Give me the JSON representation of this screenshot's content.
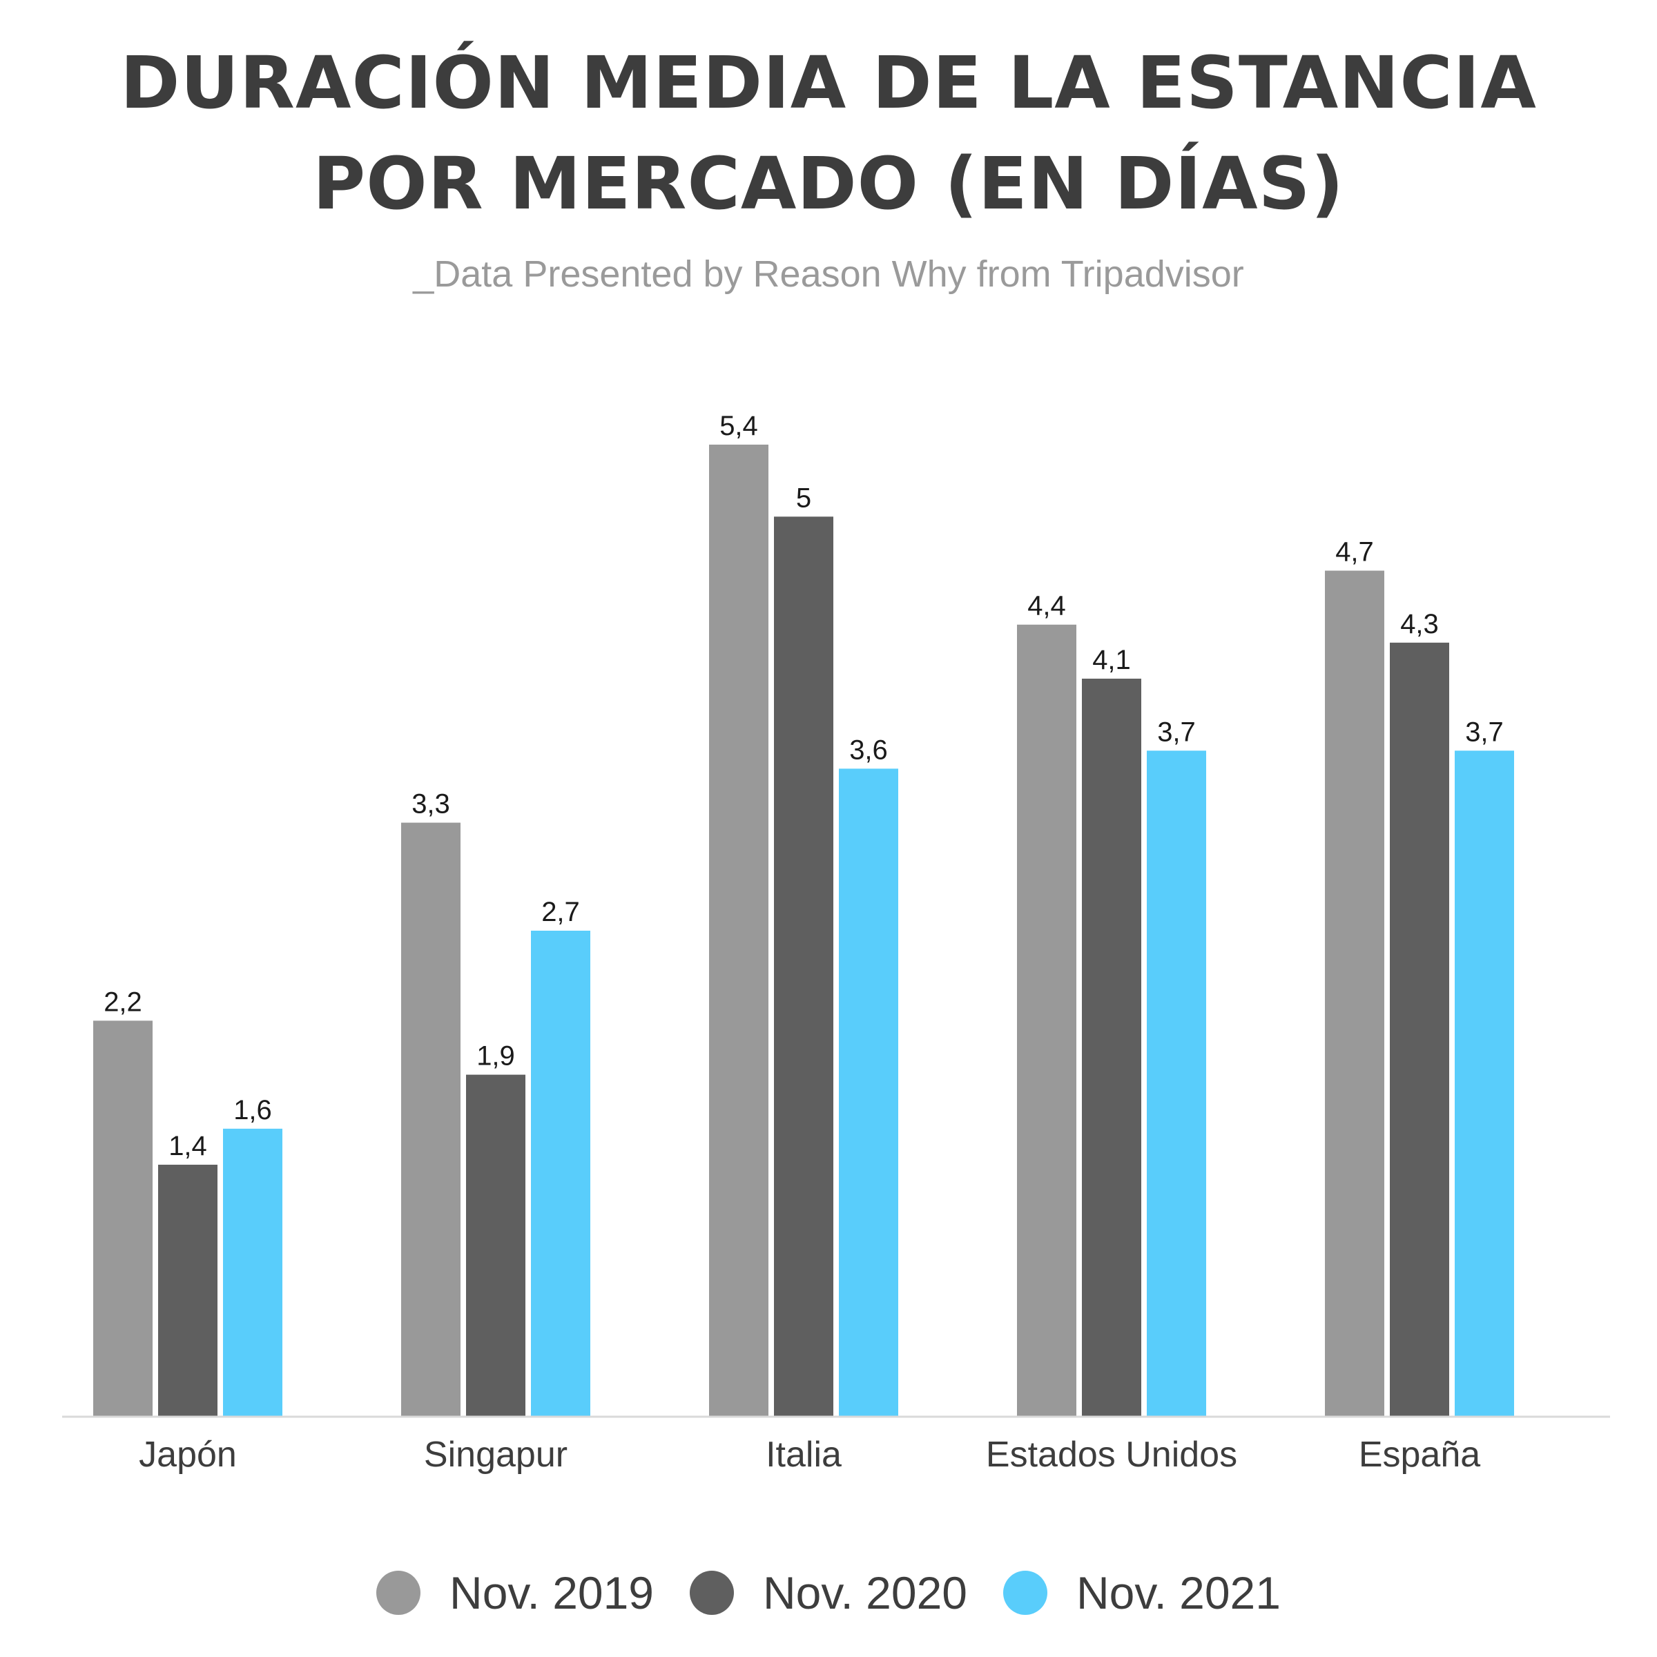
{
  "header": {
    "title_line1": "DURACIÓN MEDIA DE LA ESTANCIA",
    "title_line2": "POR MERCADO (EN DÍAS)",
    "subtitle": "_Data Presented by Reason Why from Tripadvisor"
  },
  "chart_data": {
    "type": "bar",
    "title": "DURACIÓN MEDIA DE LA ESTANCIA POR MERCADO (EN DÍAS)",
    "subtitle": "_Data Presented by Reason Why from Tripadvisor",
    "categories": [
      "Japón",
      "Singapur",
      "Italia",
      "Estados Unidos",
      "España"
    ],
    "series": [
      {
        "name": "Nov. 2019",
        "color": "#999999",
        "values": [
          2.2,
          3.3,
          5.4,
          4.4,
          4.7
        ],
        "labels": [
          "2,2",
          "3,3",
          "5,4",
          "4,4",
          "4,7"
        ]
      },
      {
        "name": "Nov. 2020",
        "color": "#5f5f5f",
        "values": [
          1.4,
          1.9,
          5,
          4.1,
          4.3
        ],
        "labels": [
          "1,4",
          "1,9",
          "5",
          "4,1",
          "4,3"
        ]
      },
      {
        "name": "Nov. 2021",
        "color": "#59cdfb",
        "values": [
          1.6,
          2.7,
          3.6,
          3.7,
          3.7
        ],
        "labels": [
          "1,6",
          "2,7",
          "3,6",
          "3,7",
          "3,7"
        ]
      }
    ],
    "xlabel": "",
    "ylabel": "",
    "ylim": [
      0,
      5.4
    ],
    "grid": false,
    "axis_color": "#d9d9d9",
    "legend_position": "bottom"
  }
}
